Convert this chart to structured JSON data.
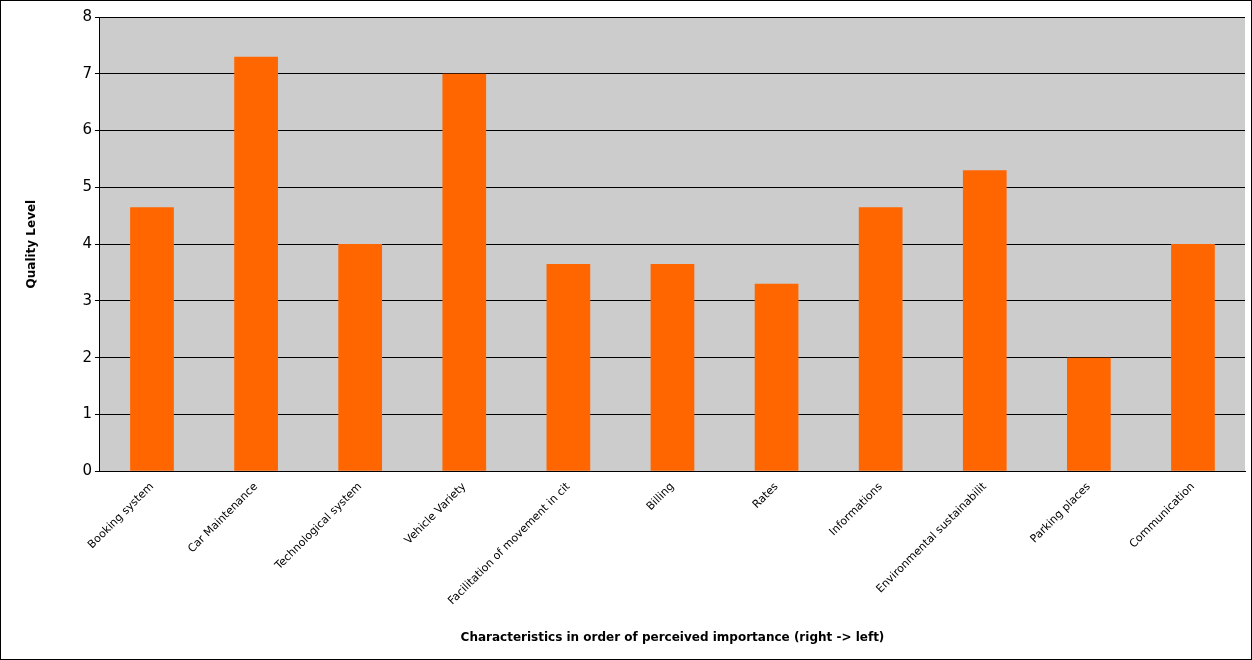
{
  "chart_data": {
    "type": "bar",
    "xlabel": "Characteristics in order of perceived importance (right -> left)",
    "ylabel": "Quality Level",
    "categories": [
      "Booking system",
      "Car Maintenance",
      "Technological system",
      "Vehicle Variety",
      "Facilitation of movement in cit",
      "Billing",
      "Rates",
      "Informations",
      "Environmental sustainabilit",
      "Parking places",
      "Communication"
    ],
    "values": [
      4.65,
      7.3,
      4.0,
      7.0,
      3.65,
      3.65,
      3.3,
      4.65,
      5.3,
      2.0,
      4.0
    ],
    "color": "#ff6600",
    "ylim": [
      0,
      8
    ],
    "yticks": [
      0,
      1,
      2,
      3,
      4,
      5,
      6,
      7,
      8
    ],
    "grid": "y",
    "legend": false
  }
}
